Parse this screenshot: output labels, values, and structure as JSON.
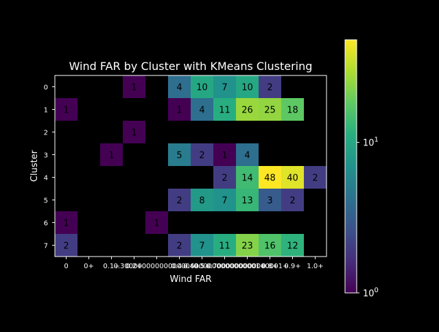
{
  "chart_data": {
    "type": "heatmap",
    "title": "Wind FAR by Cluster with KMeans Clustering",
    "xlabel": "Wind FAR",
    "ylabel": "Cluster",
    "x_ticklabels": [
      "0",
      "0+",
      "0.1+",
      "0.2+",
      "0.3+",
      "0.4+",
      "0.5+",
      "0.6+",
      "0.7+",
      "0.8+",
      "0.9+",
      "1.0+"
    ],
    "x_ticklabels_rendered": [
      "0",
      "0+",
      "0.1+",
      "0.2+",
      "0.30000000000000004+",
      "0.4+",
      "0.5+",
      "0.6000000000000001+",
      "0.7000000000000001+",
      "0.8+",
      "0.9+",
      "1.0+"
    ],
    "y_ticklabels": [
      "0",
      "1",
      "2",
      "3",
      "4",
      "5",
      "6",
      "7"
    ],
    "counts": [
      [
        null,
        null,
        null,
        1,
        null,
        4,
        10,
        7,
        10,
        2,
        null,
        null
      ],
      [
        1,
        null,
        null,
        null,
        null,
        1,
        4,
        11,
        26,
        25,
        18,
        null
      ],
      [
        null,
        null,
        null,
        1,
        null,
        null,
        null,
        null,
        null,
        null,
        null,
        null
      ],
      [
        null,
        null,
        1,
        null,
        null,
        5,
        2,
        1,
        4,
        null,
        null,
        null
      ],
      [
        null,
        null,
        null,
        null,
        null,
        null,
        null,
        2,
        14,
        48,
        40,
        2
      ],
      [
        null,
        null,
        null,
        null,
        null,
        2,
        8,
        7,
        13,
        3,
        2,
        null
      ],
      [
        1,
        null,
        null,
        null,
        1,
        null,
        null,
        null,
        null,
        null,
        null,
        null
      ],
      [
        2,
        null,
        null,
        null,
        null,
        2,
        7,
        11,
        23,
        16,
        12,
        null
      ]
    ],
    "colormap": "viridis",
    "color_scale": "log",
    "color_range": [
      1,
      48
    ],
    "colorbar_ticks": [
      {
        "base": "10",
        "exp": "0",
        "value": 1
      },
      {
        "base": "10",
        "exp": "1",
        "value": 10
      }
    ],
    "grid": false
  }
}
